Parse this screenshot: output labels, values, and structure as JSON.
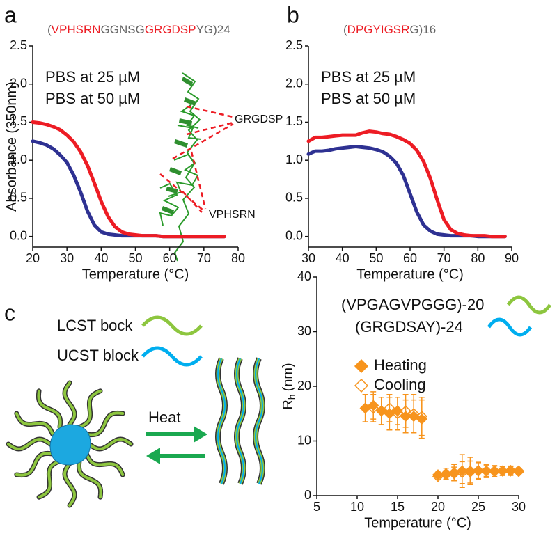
{
  "chart_data": [
    {
      "type": "line",
      "panel_label": "a",
      "title_parts": [
        "(",
        "VPHSRN",
        "GGNSG",
        "GRGDSP",
        "YG)24"
      ],
      "title_colors": [
        "#666666",
        "#ed1c24",
        "#666666",
        "#ed1c24",
        "#666666"
      ],
      "x_label": "Temperature (°C)",
      "y_label": "Absorbance (350nm)",
      "annotations": [
        "GRGDSP",
        "VPHSRN"
      ],
      "annotation_color": "#ed1c24",
      "xlim": [
        20,
        80
      ],
      "xticks": [
        20,
        30,
        40,
        50,
        60,
        70,
        80
      ],
      "ylim": [
        -0.14,
        2.5
      ],
      "yticks": [
        {
          "value": 0,
          "label": "0.0"
        },
        0.5,
        {
          "value": 1,
          "label": "1.0"
        },
        1.5,
        {
          "value": 2,
          "label": "2.0"
        },
        2.5
      ],
      "legend": "upper left",
      "x": [
        20,
        22,
        24,
        26,
        28,
        30,
        32,
        34,
        36,
        38,
        40,
        42,
        44,
        46,
        48,
        50,
        52,
        54,
        56,
        58,
        60,
        62,
        64,
        66,
        68,
        70,
        72,
        74,
        76
      ],
      "series": [
        {
          "name": "PBS at 25 µM",
          "color": "#2e3192",
          "values": [
            1.25,
            1.23,
            1.2,
            1.15,
            1.07,
            0.97,
            0.8,
            0.58,
            0.33,
            0.15,
            0.06,
            0.03,
            0.02,
            0.01,
            0.01,
            0.01,
            0.01,
            0.01,
            0.01,
            0,
            0,
            0,
            0,
            0,
            0,
            0,
            0,
            0,
            0
          ]
        },
        {
          "name": "PBS at 50 µM",
          "color": "#ed1c24",
          "values": [
            1.5,
            1.49,
            1.47,
            1.44,
            1.4,
            1.33,
            1.24,
            1.11,
            0.93,
            0.7,
            0.46,
            0.26,
            0.13,
            0.06,
            0.03,
            0.02,
            0.01,
            0.01,
            0.01,
            0,
            0,
            0,
            0,
            0,
            0,
            0,
            0,
            0,
            0
          ]
        }
      ]
    },
    {
      "type": "line",
      "panel_label": "b",
      "title_parts": [
        "(",
        "DPGYIGSR",
        "G)16"
      ],
      "title_colors": [
        "#666666",
        "#ed1c24",
        "#666666"
      ],
      "x_label": "Temperature (°C)",
      "xlim": [
        30,
        90
      ],
      "xticks": [
        30,
        40,
        50,
        60,
        70,
        80,
        90
      ],
      "ylim": [
        -0.14,
        2.5
      ],
      "yticks": [
        {
          "value": 0,
          "label": "0.0"
        },
        0.5,
        {
          "value": 1,
          "label": "1.0"
        },
        1.5,
        {
          "value": 2,
          "label": "2.0"
        },
        2.5
      ],
      "legend": "upper left",
      "x": [
        30,
        32,
        34,
        36,
        38,
        40,
        42,
        44,
        46,
        48,
        50,
        52,
        54,
        56,
        58,
        60,
        62,
        64,
        66,
        68,
        70,
        72,
        74,
        76,
        78,
        80,
        82,
        84,
        86,
        88
      ],
      "series": [
        {
          "name": "PBS at 25 µM",
          "color": "#2e3192",
          "values": [
            1.08,
            1.12,
            1.12,
            1.13,
            1.15,
            1.16,
            1.17,
            1.18,
            1.17,
            1.16,
            1.14,
            1.11,
            1.05,
            0.96,
            0.8,
            0.56,
            0.32,
            0.15,
            0.07,
            0.03,
            0.02,
            0.01,
            0.01,
            0.01,
            0.01,
            0,
            0,
            0,
            0,
            0
          ]
        },
        {
          "name": "PBS at 50 µM",
          "color": "#ed1c24",
          "values": [
            1.25,
            1.3,
            1.3,
            1.31,
            1.32,
            1.33,
            1.33,
            1.33,
            1.36,
            1.38,
            1.37,
            1.35,
            1.34,
            1.31,
            1.27,
            1.22,
            1.13,
            0.98,
            0.76,
            0.48,
            0.22,
            0.09,
            0.04,
            0.02,
            0.01,
            0.01,
            0.01,
            0,
            0,
            0
          ]
        }
      ]
    },
    {
      "type": "scatter",
      "x_label": "Temperature (°C)",
      "y_label": "R",
      "y_label_sub": "h",
      "y_label_unit": "(nm)",
      "annotations": [
        "(VPGAGVPGGG)-20",
        "(GRGDSAY)-24"
      ],
      "annotation_colors": [
        "#8dc63f",
        "#00aeef"
      ],
      "xlim": [
        5,
        30
      ],
      "xticks": [
        5,
        10,
        15,
        20,
        25,
        30
      ],
      "ylim": [
        0,
        40
      ],
      "yticks": [
        0,
        10,
        20,
        30,
        40
      ],
      "legend": "center left",
      "series": [
        {
          "name": "Cooling",
          "color": "#f7941d",
          "filled": false,
          "x": [
            12,
            13,
            14,
            15,
            16,
            17,
            18,
            20,
            21,
            22,
            23,
            24,
            25,
            26,
            27,
            28,
            29,
            30
          ],
          "values": [
            16,
            15.5,
            16,
            15,
            15.5,
            15,
            14.5,
            3.5,
            3.8,
            4,
            4.2,
            4.5,
            4.6,
            4.5,
            4.5,
            4.5,
            4.6,
            4.5
          ],
          "errors": [
            2.5,
            2.5,
            2.5,
            3,
            3,
            3.5,
            3.5,
            0.5,
            0.8,
            1.2,
            2,
            2.5,
            1.5,
            1.2,
            1,
            0.8,
            0.8,
            0.6
          ]
        },
        {
          "name": "Heating",
          "color": "#f7941d",
          "filled": true,
          "x": [
            11,
            12,
            13,
            14,
            15,
            16,
            17,
            18,
            20,
            21,
            22,
            23,
            24,
            25,
            26,
            27,
            28,
            29,
            30
          ],
          "values": [
            16,
            16.5,
            15.5,
            15,
            15.5,
            14.5,
            14.5,
            14,
            3.8,
            4,
            4.2,
            4.5,
            4.3,
            4.5,
            4.5,
            4.4,
            4.5,
            4.5,
            4.4
          ],
          "errors": [
            2.5,
            2.5,
            2.5,
            3,
            2.5,
            3,
            3,
            3.5,
            0.5,
            1,
            1.5,
            3,
            2,
            1.5,
            1,
            1,
            0.8,
            0.8,
            0.6
          ]
        }
      ]
    }
  ],
  "diagram": {
    "panel_label": "c",
    "lcst_label": "LCST bock",
    "ucst_label": "UCST block",
    "arrow_label": "Heat"
  }
}
